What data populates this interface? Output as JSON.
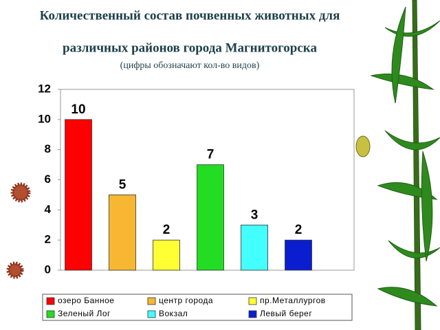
{
  "chart_data": {
    "type": "bar",
    "title": "Количественный состав почвенных животных для",
    "title_line2": "различных районов города Магнитогорска",
    "subtitle": "(цифры обозначают кол-во видов)",
    "categories": [
      "озеро Банное",
      "центр города",
      "пр.Металлургов",
      "Зеленый Лог",
      "Вокзал",
      "Левый берег"
    ],
    "values": [
      10,
      5,
      2,
      7,
      3,
      2
    ],
    "colors": [
      "#ff0000",
      "#f7b733",
      "#ffff33",
      "#22dd22",
      "#44ffff",
      "#0a1ed0"
    ],
    "ylim": [
      0,
      12
    ],
    "yticks": [
      0,
      2,
      4,
      6,
      8,
      10,
      12
    ],
    "grid": false
  }
}
